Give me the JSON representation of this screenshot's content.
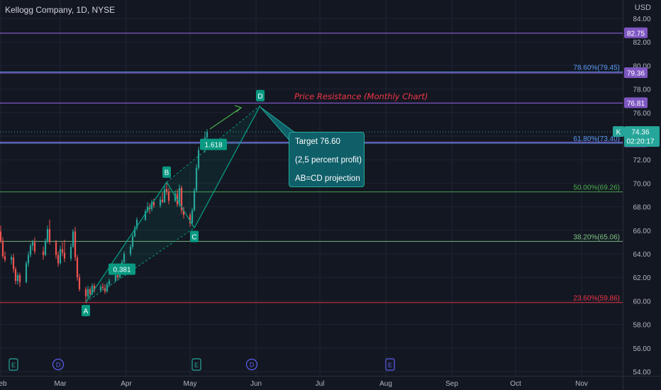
{
  "header": {
    "symbol_title": "Kellogg Company, 1D, NYSE",
    "currency": "USD"
  },
  "colors": {
    "background": "#131722",
    "grid": "#1f2433",
    "axis_text": "#b2b5be",
    "up_candle": "#26a69a",
    "down_candle": "#ef5350",
    "pattern": "#089981",
    "fib_78_6": "#5b9cf6",
    "fib_61_8": "#5b9cf6",
    "fib_50": "#4caf50",
    "fib_38_2": "#81c784",
    "fib_23_6": "#f23645",
    "resistance_line": "#7e57c2",
    "price_badge": "#7e57c2",
    "last_price_badge": "#26a69a",
    "earnings_badge": "#26a69a",
    "dividend_badge": "#5d5fef"
  },
  "chart_data": {
    "type": "candlestick",
    "symbol": "Kellogg Company",
    "interval": "1D",
    "exchange": "NYSE",
    "y_axis": {
      "currency": "USD",
      "range": [
        54,
        85
      ],
      "tick_labels": [
        "84.00",
        "82.00",
        "80.00",
        "78.00",
        "76.00",
        "74.00",
        "72.00",
        "70.00",
        "68.00",
        "66.00",
        "64.00",
        "62.00",
        "60.00",
        "58.00",
        "56.00",
        "54.00"
      ]
    },
    "x_axis": {
      "tick_labels": [
        "Feb",
        "Mar",
        "Apr",
        "May",
        "Jun",
        "Jul",
        "Aug",
        "Sep",
        "Oct",
        "Nov"
      ]
    },
    "last_price": {
      "ticker": "K",
      "value": "74.36",
      "countdown": "02:20:17"
    },
    "horizontal_lines": [
      {
        "value": 82.75,
        "badge": "82.75",
        "color": "#7e57c2"
      },
      {
        "value": 79.36,
        "badge": "79.36",
        "color": "#7e57c2"
      },
      {
        "value": 76.81,
        "badge": "76.81",
        "color": "#7e57c2"
      },
      {
        "value": 73.49,
        "badge": "73.49",
        "color": "#7e57c2"
      }
    ],
    "fib_levels": [
      {
        "label": "78.60%(79.45)",
        "value": 79.45,
        "color": "#5b9cf6"
      },
      {
        "label": "61.80%(73.40)",
        "value": 73.4,
        "color": "#5b9cf6"
      },
      {
        "label": "50.00%(69.26)",
        "value": 69.26,
        "color": "#4caf50"
      },
      {
        "label": "38.20%(65.06)",
        "value": 65.06,
        "color": "#81c784"
      },
      {
        "label": "23.60%(59.86)",
        "value": 59.86,
        "color": "#f23645"
      }
    ],
    "abcd_pattern": {
      "points": [
        {
          "label": "A",
          "date": "2023-03-13",
          "price": 59.9
        },
        {
          "label": "B",
          "date": "2023-04-20",
          "price": 70.1
        },
        {
          "label": "C",
          "date": "2023-05-03",
          "price": 66.2
        },
        {
          "label": "D",
          "date": "2023-06-03",
          "price": 76.6
        }
      ],
      "ratio_labels": [
        {
          "text": "0.381",
          "date": "2023-03-30",
          "price": 62.7
        },
        {
          "text": "1.618",
          "date": "2023-05-12",
          "price": 73.3
        }
      ]
    },
    "annotations": {
      "resistance_text": "Price Resistance (Monthly Chart)",
      "callout_lines": [
        "Target 76.60",
        "(2,5 percent profit)",
        "AB=CD projection"
      ]
    },
    "events": [
      {
        "type": "earnings",
        "letter": "E",
        "date": "2023-02-07"
      },
      {
        "type": "dividend",
        "letter": "D",
        "date": "2023-02-28"
      },
      {
        "type": "earnings",
        "letter": "E",
        "date": "2023-05-04"
      },
      {
        "type": "dividend",
        "letter": "D",
        "date": "2023-05-30"
      },
      {
        "type": "earnings",
        "letter": "E",
        "date": "2023-08-03"
      }
    ],
    "candles": [
      {
        "date": "2023-01-31",
        "open": 65.8,
        "high": 66.5,
        "low": 65.3,
        "close": 65.9
      },
      {
        "date": "2023-02-01",
        "open": 65.9,
        "high": 66.4,
        "low": 64.9,
        "close": 65.1
      },
      {
        "date": "2023-02-02",
        "open": 65.1,
        "high": 65.4,
        "low": 63.6,
        "close": 63.8
      },
      {
        "date": "2023-02-03",
        "open": 63.8,
        "high": 64.2,
        "low": 63.3,
        "close": 63.5
      },
      {
        "date": "2023-02-06",
        "open": 63.5,
        "high": 63.9,
        "low": 63.1,
        "close": 63.7
      },
      {
        "date": "2023-02-07",
        "open": 63.7,
        "high": 64.0,
        "low": 62.4,
        "close": 62.7
      },
      {
        "date": "2023-02-08",
        "open": 62.7,
        "high": 62.9,
        "low": 61.4,
        "close": 61.7
      },
      {
        "date": "2023-02-09",
        "open": 61.7,
        "high": 62.4,
        "low": 61.4,
        "close": 62.2
      },
      {
        "date": "2023-02-10",
        "open": 62.2,
        "high": 62.4,
        "low": 61.2,
        "close": 61.6
      },
      {
        "date": "2023-02-13",
        "open": 61.6,
        "high": 63.4,
        "low": 61.5,
        "close": 63.2
      },
      {
        "date": "2023-02-14",
        "open": 63.2,
        "high": 64.2,
        "low": 62.9,
        "close": 63.9
      },
      {
        "date": "2023-02-15",
        "open": 63.9,
        "high": 64.9,
        "low": 63.7,
        "close": 64.7
      },
      {
        "date": "2023-02-16",
        "open": 64.7,
        "high": 65.2,
        "low": 64.3,
        "close": 65.0
      },
      {
        "date": "2023-02-17",
        "open": 65.0,
        "high": 65.4,
        "low": 64.0,
        "close": 64.2
      },
      {
        "date": "2023-02-21",
        "open": 64.2,
        "high": 64.6,
        "low": 63.5,
        "close": 63.9
      },
      {
        "date": "2023-02-22",
        "open": 63.9,
        "high": 65.3,
        "low": 63.8,
        "close": 65.1
      },
      {
        "date": "2023-02-23",
        "open": 65.1,
        "high": 66.4,
        "low": 64.9,
        "close": 66.1
      },
      {
        "date": "2023-02-24",
        "open": 66.1,
        "high": 66.9,
        "low": 64.8,
        "close": 65.0
      },
      {
        "date": "2023-02-27",
        "open": 65.0,
        "high": 65.2,
        "low": 63.6,
        "close": 63.9
      },
      {
        "date": "2023-02-28",
        "open": 63.9,
        "high": 64.2,
        "low": 62.9,
        "close": 63.2
      },
      {
        "date": "2023-03-01",
        "open": 63.2,
        "high": 64.7,
        "low": 63.1,
        "close": 64.4
      },
      {
        "date": "2023-03-02",
        "open": 64.4,
        "high": 65.0,
        "low": 63.8,
        "close": 64.1
      },
      {
        "date": "2023-03-03",
        "open": 64.1,
        "high": 65.2,
        "low": 63.3,
        "close": 63.6
      },
      {
        "date": "2023-03-06",
        "open": 63.6,
        "high": 64.9,
        "low": 63.4,
        "close": 64.6
      },
      {
        "date": "2023-03-07",
        "open": 64.6,
        "high": 66.1,
        "low": 64.5,
        "close": 65.9
      },
      {
        "date": "2023-03-08",
        "open": 65.9,
        "high": 66.3,
        "low": 63.4,
        "close": 63.7
      },
      {
        "date": "2023-03-09",
        "open": 63.7,
        "high": 63.9,
        "low": 61.7,
        "close": 62.0
      },
      {
        "date": "2023-03-10",
        "open": 62.0,
        "high": 62.3,
        "low": 60.8,
        "close": 61.0
      },
      {
        "date": "2023-03-13",
        "open": 61.0,
        "high": 61.2,
        "low": 59.8,
        "close": 60.4
      },
      {
        "date": "2023-03-14",
        "open": 60.4,
        "high": 61.3,
        "low": 60.2,
        "close": 61.0
      },
      {
        "date": "2023-03-15",
        "open": 61.0,
        "high": 61.2,
        "low": 60.3,
        "close": 60.6
      },
      {
        "date": "2023-03-16",
        "open": 60.6,
        "high": 61.5,
        "low": 60.5,
        "close": 61.3
      },
      {
        "date": "2023-03-17",
        "open": 61.3,
        "high": 61.5,
        "low": 60.7,
        "close": 60.9
      },
      {
        "date": "2023-03-20",
        "open": 60.9,
        "high": 61.4,
        "low": 60.8,
        "close": 61.2
      },
      {
        "date": "2023-03-21",
        "open": 61.2,
        "high": 61.5,
        "low": 60.9,
        "close": 61.1
      },
      {
        "date": "2023-03-22",
        "open": 61.1,
        "high": 61.4,
        "low": 60.6,
        "close": 60.8
      },
      {
        "date": "2023-03-23",
        "open": 60.8,
        "high": 61.6,
        "low": 60.7,
        "close": 61.4
      },
      {
        "date": "2023-03-24",
        "open": 61.4,
        "high": 61.9,
        "low": 61.2,
        "close": 61.7
      },
      {
        "date": "2023-03-27",
        "open": 61.7,
        "high": 62.4,
        "low": 61.6,
        "close": 62.2
      },
      {
        "date": "2023-03-28",
        "open": 62.2,
        "high": 62.6,
        "low": 61.8,
        "close": 62.0
      },
      {
        "date": "2023-03-29",
        "open": 62.0,
        "high": 62.9,
        "low": 61.9,
        "close": 62.7
      },
      {
        "date": "2023-03-30",
        "open": 62.7,
        "high": 63.5,
        "low": 62.6,
        "close": 63.3
      },
      {
        "date": "2023-03-31",
        "open": 63.3,
        "high": 64.2,
        "low": 63.2,
        "close": 64.0
      },
      {
        "date": "2023-04-03",
        "open": 64.0,
        "high": 64.8,
        "low": 63.8,
        "close": 64.6
      },
      {
        "date": "2023-04-04",
        "open": 64.6,
        "high": 65.7,
        "low": 64.4,
        "close": 65.5
      },
      {
        "date": "2023-04-05",
        "open": 65.5,
        "high": 66.4,
        "low": 65.4,
        "close": 66.2
      },
      {
        "date": "2023-04-06",
        "open": 66.2,
        "high": 67.1,
        "low": 66.0,
        "close": 66.9
      },
      {
        "date": "2023-04-10",
        "open": 66.9,
        "high": 67.8,
        "low": 66.8,
        "close": 67.6
      },
      {
        "date": "2023-04-11",
        "open": 67.6,
        "high": 68.4,
        "low": 67.5,
        "close": 68.0
      },
      {
        "date": "2023-04-12",
        "open": 68.0,
        "high": 68.3,
        "low": 67.4,
        "close": 67.8
      },
      {
        "date": "2023-04-13",
        "open": 67.8,
        "high": 68.6,
        "low": 67.6,
        "close": 68.4
      },
      {
        "date": "2023-04-14",
        "open": 68.4,
        "high": 68.7,
        "low": 67.9,
        "close": 68.1
      },
      {
        "date": "2023-04-17",
        "open": 68.1,
        "high": 68.9,
        "low": 67.9,
        "close": 68.6
      },
      {
        "date": "2023-04-18",
        "open": 68.6,
        "high": 69.2,
        "low": 68.3,
        "close": 68.4
      },
      {
        "date": "2023-04-19",
        "open": 68.4,
        "high": 69.8,
        "low": 68.3,
        "close": 69.5
      },
      {
        "date": "2023-04-20",
        "open": 69.5,
        "high": 70.1,
        "low": 69.0,
        "close": 69.3
      },
      {
        "date": "2023-04-21",
        "open": 69.3,
        "high": 69.6,
        "low": 68.2,
        "close": 68.5
      },
      {
        "date": "2023-04-24",
        "open": 68.5,
        "high": 69.4,
        "low": 68.4,
        "close": 69.1
      },
      {
        "date": "2023-04-25",
        "open": 69.1,
        "high": 69.5,
        "low": 68.0,
        "close": 68.2
      },
      {
        "date": "2023-04-26",
        "open": 68.2,
        "high": 69.9,
        "low": 68.0,
        "close": 69.6
      },
      {
        "date": "2023-04-27",
        "open": 69.6,
        "high": 69.8,
        "low": 67.4,
        "close": 67.7
      },
      {
        "date": "2023-04-28",
        "open": 67.7,
        "high": 68.0,
        "low": 67.0,
        "close": 67.3
      },
      {
        "date": "2023-05-01",
        "open": 67.3,
        "high": 67.5,
        "low": 66.3,
        "close": 66.6
      },
      {
        "date": "2023-05-02",
        "open": 66.6,
        "high": 67.9,
        "low": 66.4,
        "close": 67.7
      },
      {
        "date": "2023-05-03",
        "open": 67.7,
        "high": 69.6,
        "low": 67.6,
        "close": 69.4
      },
      {
        "date": "2023-05-04",
        "open": 69.4,
        "high": 71.6,
        "low": 69.2,
        "close": 71.3
      },
      {
        "date": "2023-05-05",
        "open": 71.3,
        "high": 73.1,
        "low": 71.1,
        "close": 72.8
      },
      {
        "date": "2023-05-08",
        "open": 72.8,
        "high": 74.4,
        "low": 72.6,
        "close": 73.9
      },
      {
        "date": "2023-05-09",
        "open": 73.9,
        "high": 74.6,
        "low": 73.6,
        "close": 74.36
      }
    ]
  }
}
